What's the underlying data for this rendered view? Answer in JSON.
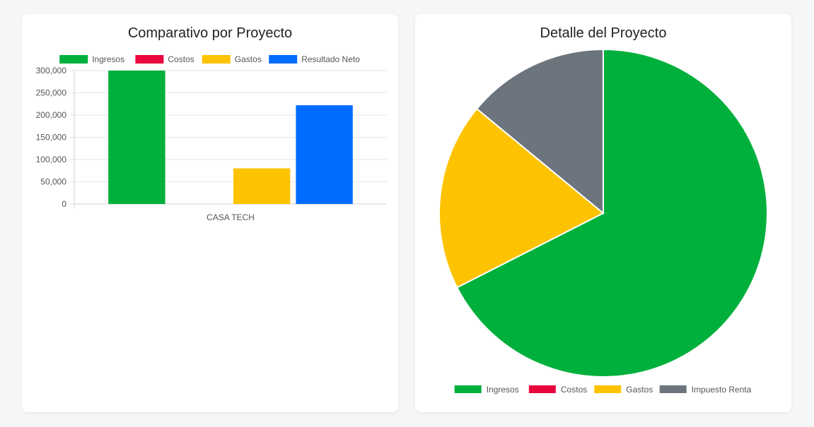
{
  "colors": {
    "ingresos": "#00b03c",
    "costos": "#e8063c",
    "gastos": "#fdc300",
    "resultado_neto": "#006cff",
    "impuesto_renta": "#6c757d"
  },
  "bar_card": {
    "title": "Comparativo por Proyecto"
  },
  "pie_card": {
    "title": "Detalle del Proyecto"
  },
  "chart_data": [
    {
      "type": "bar",
      "title": "Comparativo por Proyecto",
      "categories": [
        "CASA TECH"
      ],
      "series": [
        {
          "name": "Ingresos",
          "color": "#00b03c",
          "values": [
            300000
          ]
        },
        {
          "name": "Costos",
          "color": "#e8063c",
          "values": [
            0
          ]
        },
        {
          "name": "Gastos",
          "color": "#fdc300",
          "values": [
            80000
          ]
        },
        {
          "name": "Resultado Neto",
          "color": "#006cff",
          "values": [
            222000
          ]
        }
      ],
      "ylim": [
        0,
        300000
      ],
      "yticks": [
        "0",
        "50,000",
        "100,000",
        "150,000",
        "200,000",
        "250,000",
        "300,000"
      ],
      "ytick_values": [
        0,
        50000,
        100000,
        150000,
        200000,
        250000,
        300000
      ],
      "grid": true,
      "legend": "top"
    },
    {
      "type": "pie",
      "title": "Detalle del Proyecto",
      "slices": [
        {
          "name": "Ingresos",
          "color": "#00b03c",
          "value": 67.5
        },
        {
          "name": "Costos",
          "color": "#e8063c",
          "value": 0
        },
        {
          "name": "Gastos",
          "color": "#fdc300",
          "value": 18.5
        },
        {
          "name": "Impuesto Renta",
          "color": "#6c757d",
          "value": 14.0
        }
      ],
      "legend": "bottom"
    }
  ]
}
